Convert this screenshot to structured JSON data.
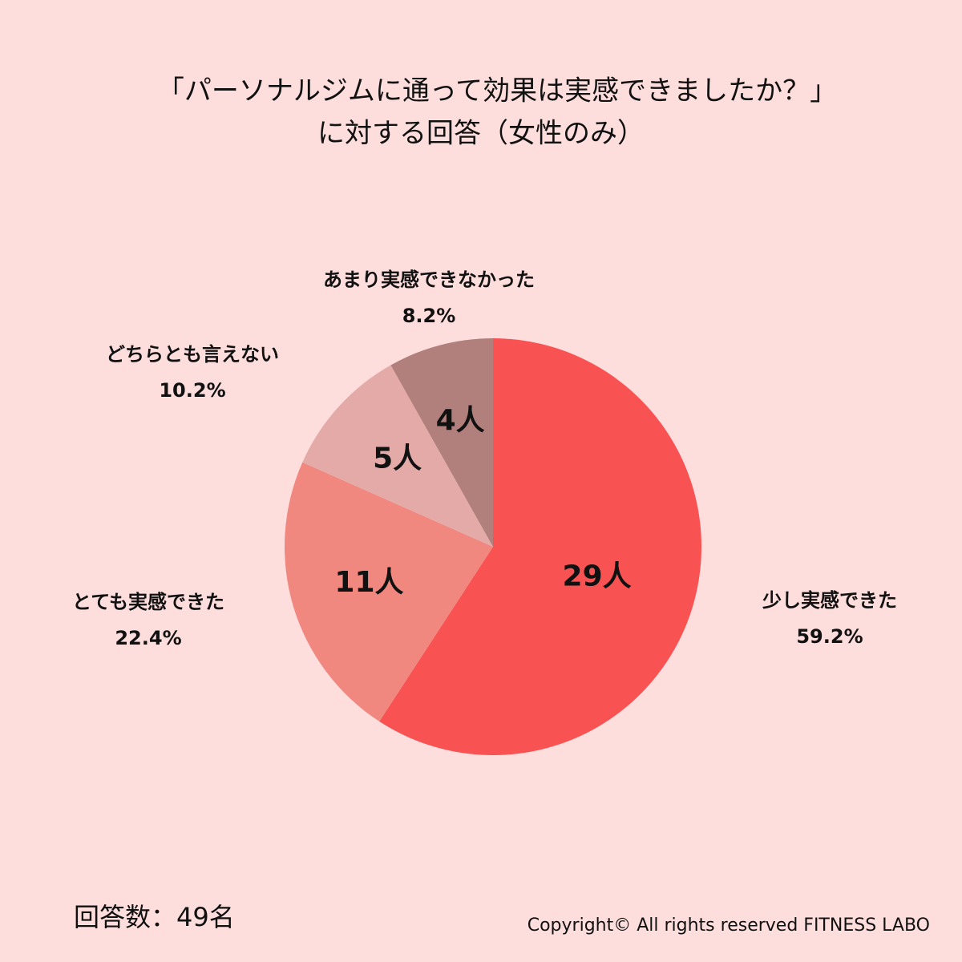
{
  "chart_data": {
    "type": "pie",
    "title": [
      "「パーソナルジムに通って効果は実感できましたか？」",
      "に対する回答（女性のみ）"
    ],
    "categories": [
      "少し実感できた",
      "とても実感できた",
      "どちらとも言えない",
      "あまり実感できなかった"
    ],
    "values": [
      29,
      11,
      5,
      4
    ],
    "value_labels": [
      "29人",
      "11人",
      "5人",
      "4人"
    ],
    "percent_labels": [
      "59.2%",
      "22.4%",
      "10.2%",
      "8.2%"
    ],
    "colors": [
      "#f95252",
      "#f08880",
      "#e3aaa8",
      "#b1807c"
    ],
    "respondents": "回答数：49名",
    "copyright": "Copyright© All rights reserved FITNESS LABO"
  }
}
